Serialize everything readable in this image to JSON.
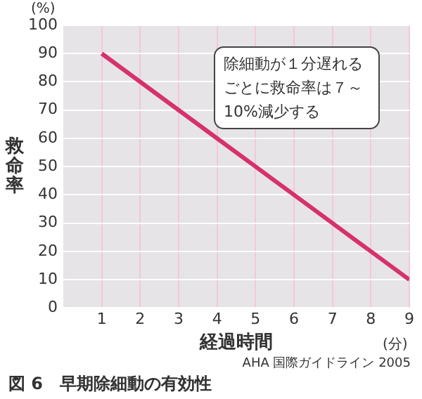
{
  "chart_data": {
    "type": "line",
    "title": "図 6　早期除細動の有効性",
    "xlabel": "経過時間",
    "ylabel": "救命率",
    "annotations": [
      "除細動が１分遅れるごとに救命率は７～10%減少する",
      "(%)",
      "(分)",
      "AHA 国際ガイドライン 2005"
    ],
    "x": [
      1,
      2,
      3,
      4,
      5,
      6,
      7,
      8,
      9
    ],
    "series": [
      {
        "color": "#d6316d",
        "values": [
          90,
          80,
          70,
          60,
          50,
          40,
          30,
          20,
          10
        ]
      }
    ],
    "xlim": [
      0,
      9
    ],
    "xticks": [
      1,
      2,
      3,
      4,
      5,
      6,
      7,
      8,
      9
    ],
    "ylim": [
      0,
      100
    ],
    "yticks": [
      0,
      10,
      20,
      30,
      40,
      50,
      60,
      70,
      80,
      90,
      100
    ],
    "grid": true,
    "marker": "none"
  }
}
